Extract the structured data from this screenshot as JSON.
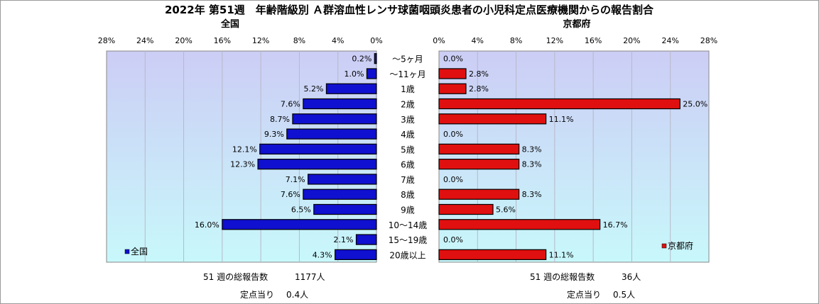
{
  "title": "2022年 第51週　年齢階級別 Ａ群溶血性レンサ球菌咽頭炎患者の小児科定点医療機関からの報告割合",
  "colors": {
    "left_bar": "#1010d0",
    "right_bar": "#e01010",
    "plot_top": "#cccdf5",
    "plot_bottom": "#c8f8fb",
    "grid": "#b8b8c8"
  },
  "age_labels": [
    "～5ヶ月",
    "～11ヶ月",
    "1歳",
    "2歳",
    "3歳",
    "4歳",
    "5歳",
    "6歳",
    "7歳",
    "8歳",
    "9歳",
    "10～14歳",
    "15～19歳",
    "20歳以上"
  ],
  "chart_data": [
    {
      "type": "bar",
      "orientation": "horizontal",
      "title": "全国",
      "categories": [
        "～5ヶ月",
        "～11ヶ月",
        "1歳",
        "2歳",
        "3歳",
        "4歳",
        "5歳",
        "6歳",
        "7歳",
        "8歳",
        "9歳",
        "10～14歳",
        "15～19歳",
        "20歳以上"
      ],
      "values": [
        0.2,
        1.0,
        5.2,
        7.6,
        8.7,
        9.3,
        12.1,
        12.3,
        7.1,
        7.6,
        6.5,
        16.0,
        2.1,
        4.3
      ],
      "value_labels": [
        "0.2%",
        "1.0%",
        "5.2%",
        "7.6%",
        "8.7%",
        "9.3%",
        "12.1%",
        "12.3%",
        "7.1%",
        "7.6%",
        "6.5%",
        "16.0%",
        "2.1%",
        "4.3%"
      ],
      "xlim": [
        0,
        28
      ],
      "x_reversed": true,
      "ticks": [
        "28%",
        "24%",
        "20%",
        "16%",
        "12%",
        "8%",
        "4%",
        "0%"
      ],
      "legend": "全国",
      "legend_position": "bottom-left",
      "grid": true
    },
    {
      "type": "bar",
      "orientation": "horizontal",
      "title": "京都府",
      "categories": [
        "～5ヶ月",
        "～11ヶ月",
        "1歳",
        "2歳",
        "3歳",
        "4歳",
        "5歳",
        "6歳",
        "7歳",
        "8歳",
        "9歳",
        "10～14歳",
        "15～19歳",
        "20歳以上"
      ],
      "values": [
        0.0,
        2.8,
        2.8,
        25.0,
        11.1,
        0.0,
        8.3,
        8.3,
        0.0,
        8.3,
        5.6,
        16.7,
        0.0,
        11.1
      ],
      "value_labels": [
        "0.0%",
        "2.8%",
        "2.8%",
        "25.0%",
        "11.1%",
        "0.0%",
        "8.3%",
        "8.3%",
        "0.0%",
        "8.3%",
        "5.6%",
        "16.7%",
        "0.0%",
        "11.1%"
      ],
      "xlim": [
        0,
        28
      ],
      "x_reversed": false,
      "ticks": [
        "0%",
        "4%",
        "8%",
        "12%",
        "16%",
        "20%",
        "24%",
        "28%"
      ],
      "legend": "京都府",
      "legend_position": "bottom-right",
      "grid": true
    }
  ],
  "stats": {
    "left": {
      "total_label": "51 週の総報告数",
      "total_value": "1177人",
      "per_label": "定点当り",
      "per_value": "0.4人"
    },
    "right": {
      "total_label": "51 週の総報告数",
      "total_value": "36人",
      "per_label": "定点当り",
      "per_value": "0.5人"
    }
  }
}
